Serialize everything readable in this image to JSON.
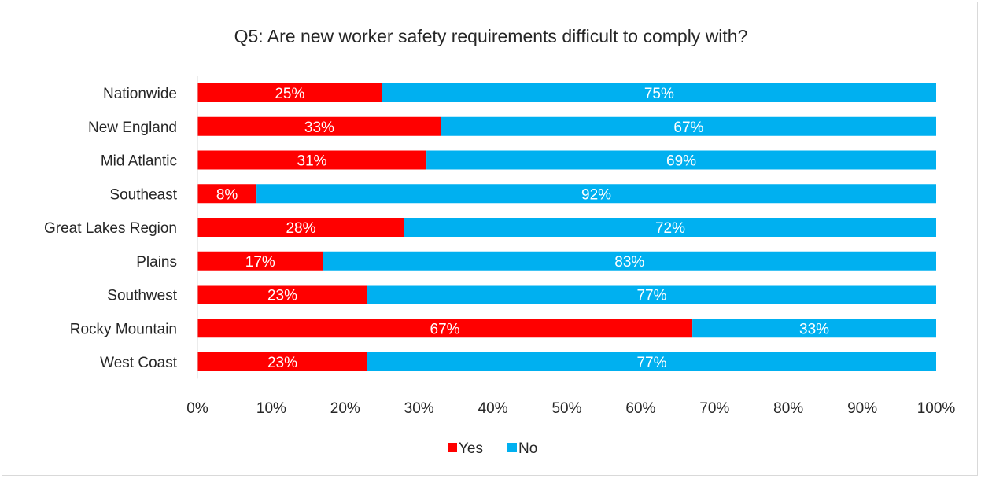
{
  "chart_data": {
    "type": "bar",
    "orientation": "horizontal",
    "stacked": true,
    "title": "Q5: Are new worker safety requirements difficult to comply with?",
    "categories": [
      "Nationwide",
      "New England",
      "Mid Atlantic",
      "Southeast",
      "Great Lakes Region",
      "Plains",
      "Southwest",
      "Rocky Mountain",
      "West Coast"
    ],
    "series": [
      {
        "name": "Yes",
        "color": "#ff0000",
        "values": [
          25,
          33,
          31,
          8,
          28,
          17,
          23,
          67,
          23
        ],
        "labels": [
          "25%",
          "33%",
          "31%",
          "8%",
          "28%",
          "17%",
          "23%",
          "67%",
          "23%"
        ]
      },
      {
        "name": "No",
        "color": "#00b0f0",
        "values": [
          75,
          67,
          69,
          92,
          72,
          83,
          77,
          33,
          77
        ],
        "labels": [
          "75%",
          "67%",
          "69%",
          "92%",
          "72%",
          "83%",
          "77%",
          "33%",
          "77%"
        ]
      }
    ],
    "xlim": [
      0,
      100
    ],
    "x_ticks": [
      "0%",
      "10%",
      "20%",
      "30%",
      "40%",
      "50%",
      "60%",
      "70%",
      "80%",
      "90%",
      "100%"
    ],
    "grid": false,
    "legend": "bottom"
  }
}
